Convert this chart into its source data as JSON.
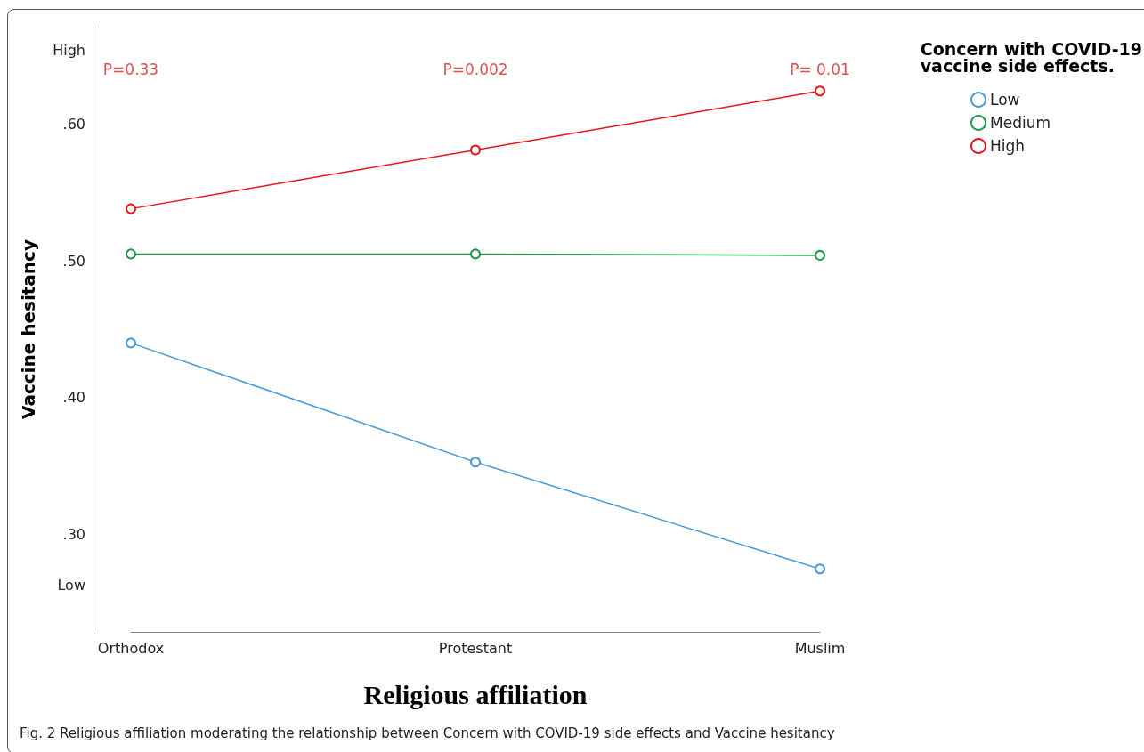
{
  "chart_data": {
    "type": "line",
    "xlabel": "Religious affiliation",
    "ylabel": "Vaccine hesitancy",
    "legend_title": "Concern with COVID-19 vaccine side effects.",
    "categories": [
      "Orthodox",
      "Protestant",
      "Muslim"
    ],
    "series": [
      {
        "name": "Low",
        "color": "#4a9ad8",
        "values": [
          0.44,
          0.353,
          0.275
        ]
      },
      {
        "name": "Medium",
        "color": "#1f9a4c",
        "values": [
          0.505,
          0.505,
          0.504
        ]
      },
      {
        "name": "High",
        "color": "#e8151b",
        "values": [
          0.538,
          0.581,
          0.624
        ]
      }
    ],
    "ylim": [
      0.229,
      0.671
    ],
    "yticks": [
      {
        "value": 0.263,
        "label": "Low"
      },
      {
        "value": 0.3,
        "label": ".30"
      },
      {
        "value": 0.4,
        "label": ".40"
      },
      {
        "value": 0.5,
        "label": ".50"
      },
      {
        "value": 0.6,
        "label": ".60"
      },
      {
        "value": 0.654,
        "label": "High"
      }
    ],
    "annotations": [
      "P=0.33",
      "P=0.002",
      "P= 0.01",
      "Fig. 2  Religious affiliation moderating the relationship between Concern with COVID-19 side effects and Vaccine hesitancy"
    ],
    "marker": "circle",
    "line_style": "solid",
    "grid": false,
    "legend": "top right"
  }
}
